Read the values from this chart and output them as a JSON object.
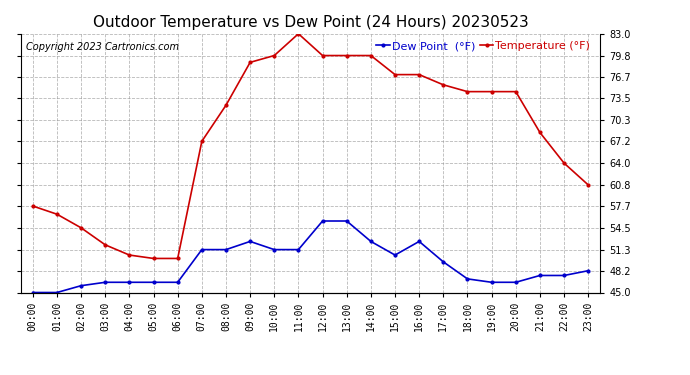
{
  "title": "Outdoor Temperature vs Dew Point (24 Hours) 20230523",
  "copyright": "Copyright 2023 Cartronics.com",
  "legend_dew": "Dew Point  (°F)",
  "legend_temp": "Temperature (°F)",
  "hours": [
    "00:00",
    "01:00",
    "02:00",
    "03:00",
    "04:00",
    "05:00",
    "06:00",
    "07:00",
    "08:00",
    "09:00",
    "10:00",
    "11:00",
    "12:00",
    "13:00",
    "14:00",
    "15:00",
    "16:00",
    "17:00",
    "18:00",
    "19:00",
    "20:00",
    "21:00",
    "22:00",
    "23:00"
  ],
  "temperature": [
    57.7,
    56.5,
    54.5,
    52.0,
    50.5,
    50.0,
    50.0,
    67.2,
    72.5,
    78.8,
    79.8,
    83.0,
    79.8,
    79.8,
    79.8,
    77.0,
    77.0,
    75.5,
    74.5,
    74.5,
    74.5,
    68.5,
    64.0,
    60.8
  ],
  "dew_point": [
    45.0,
    45.0,
    46.0,
    46.5,
    46.5,
    46.5,
    46.5,
    51.3,
    51.3,
    52.5,
    51.3,
    51.3,
    55.5,
    55.5,
    52.5,
    50.5,
    52.5,
    49.5,
    47.0,
    46.5,
    46.5,
    47.5,
    47.5,
    48.2
  ],
  "temp_color": "#cc0000",
  "dew_color": "#0000cc",
  "ylim_min": 45.0,
  "ylim_max": 83.0,
  "yticks": [
    45.0,
    48.2,
    51.3,
    54.5,
    57.7,
    60.8,
    64.0,
    67.2,
    70.3,
    73.5,
    76.7,
    79.8,
    83.0
  ],
  "background_color": "#ffffff",
  "grid_color": "#999999",
  "title_fontsize": 11,
  "copyright_fontsize": 7,
  "legend_fontsize": 8,
  "tick_fontsize": 7,
  "marker": ".",
  "marker_size": 4,
  "line_width": 1.2
}
